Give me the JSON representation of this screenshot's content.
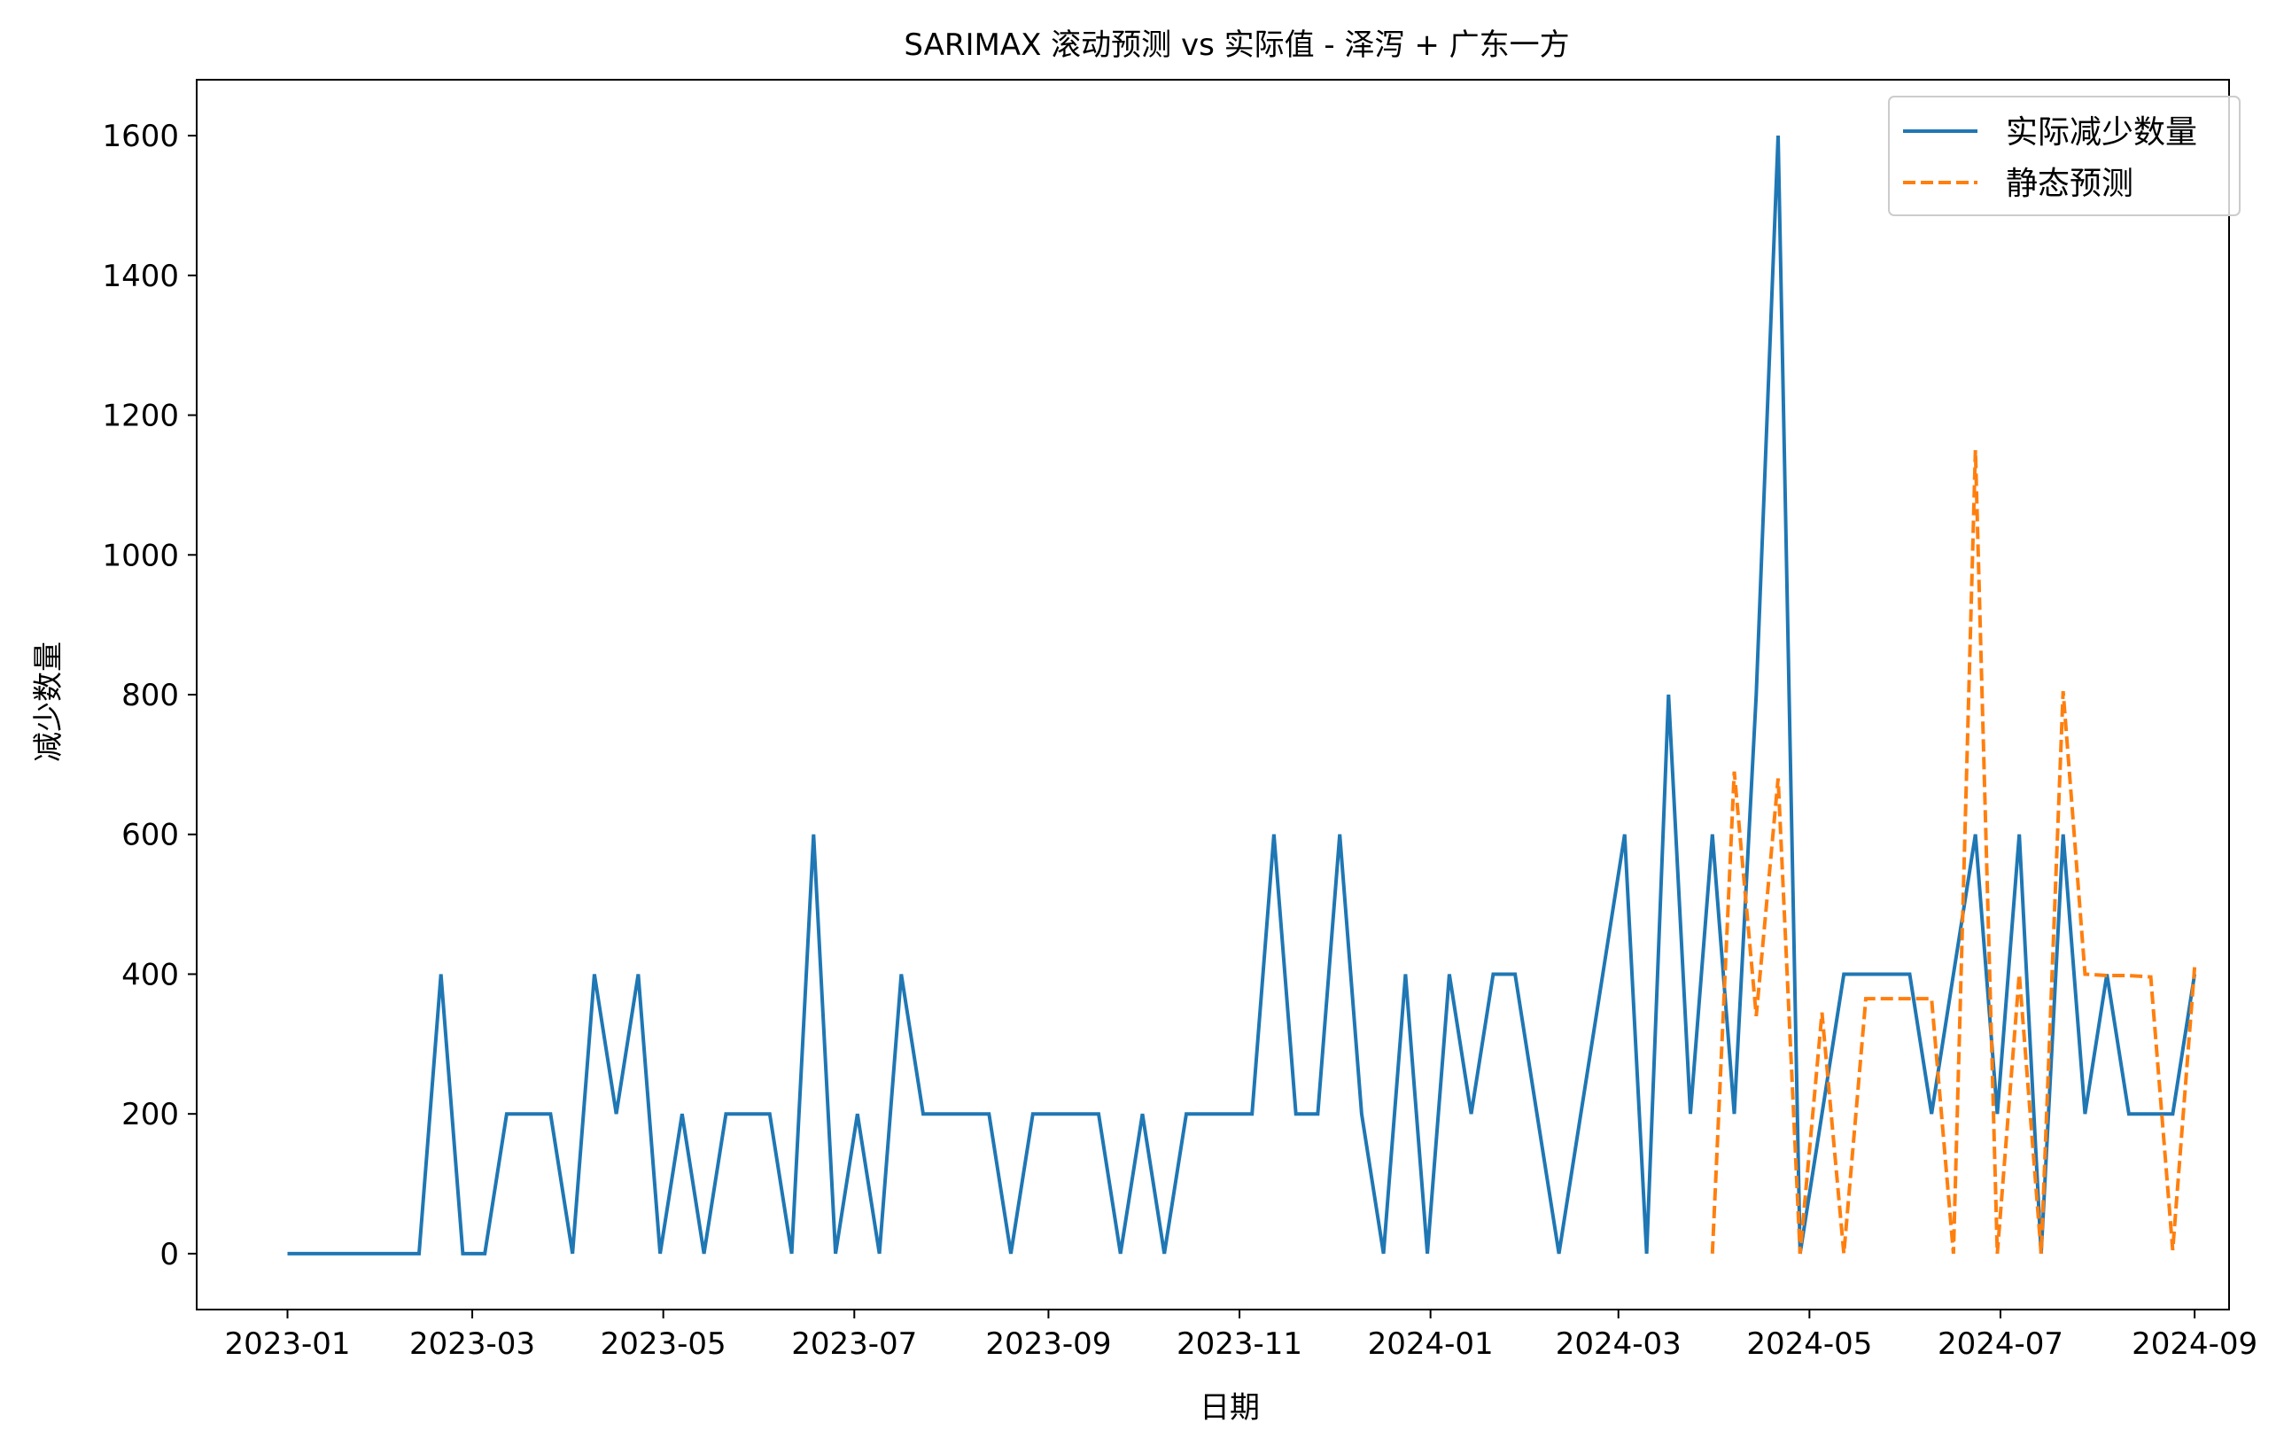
{
  "chart_data": {
    "type": "line",
    "title": "SARIMAX 滚动预测 vs 实际值 - 泽泻 + 广东一方",
    "xlabel": "日期",
    "ylabel": "减少数量",
    "x_ticks": [
      "2023-01",
      "2023-03",
      "2023-05",
      "2023-07",
      "2023-09",
      "2023-11",
      "2024-01",
      "2024-03",
      "2024-05",
      "2024-07",
      "2024-09"
    ],
    "y_ticks": [
      "0",
      "200",
      "400",
      "600",
      "800",
      "1000",
      "1200",
      "1400",
      "1600"
    ],
    "xlim": [
      "2022-12-03",
      "2024-09-12"
    ],
    "ylim": [
      -80,
      1680
    ],
    "grid": false,
    "legend_position": "top-right",
    "series": [
      {
        "name": "实际减少数量",
        "color": "#1f77b4",
        "style": "solid",
        "points": [
          [
            "2023-01-01",
            0
          ],
          [
            "2023-01-08",
            0
          ],
          [
            "2023-01-15",
            0
          ],
          [
            "2023-01-22",
            0
          ],
          [
            "2023-01-29",
            0
          ],
          [
            "2023-02-05",
            0
          ],
          [
            "2023-02-12",
            0
          ],
          [
            "2023-02-19",
            400
          ],
          [
            "2023-02-26",
            0
          ],
          [
            "2023-03-05",
            0
          ],
          [
            "2023-03-12",
            200
          ],
          [
            "2023-03-19",
            200
          ],
          [
            "2023-03-26",
            200
          ],
          [
            "2023-04-02",
            0
          ],
          [
            "2023-04-09",
            400
          ],
          [
            "2023-04-16",
            200
          ],
          [
            "2023-04-23",
            400
          ],
          [
            "2023-04-30",
            0
          ],
          [
            "2023-05-07",
            200
          ],
          [
            "2023-05-14",
            0
          ],
          [
            "2023-05-21",
            200
          ],
          [
            "2023-05-28",
            200
          ],
          [
            "2023-06-04",
            200
          ],
          [
            "2023-06-11",
            0
          ],
          [
            "2023-06-18",
            600
          ],
          [
            "2023-06-25",
            0
          ],
          [
            "2023-07-02",
            200
          ],
          [
            "2023-07-09",
            0
          ],
          [
            "2023-07-16",
            400
          ],
          [
            "2023-07-23",
            200
          ],
          [
            "2023-07-30",
            200
          ],
          [
            "2023-08-06",
            200
          ],
          [
            "2023-08-13",
            200
          ],
          [
            "2023-08-20",
            0
          ],
          [
            "2023-08-27",
            200
          ],
          [
            "2023-09-03",
            200
          ],
          [
            "2023-09-10",
            200
          ],
          [
            "2023-09-17",
            200
          ],
          [
            "2023-09-24",
            0
          ],
          [
            "2023-10-01",
            200
          ],
          [
            "2023-10-08",
            0
          ],
          [
            "2023-10-15",
            200
          ],
          [
            "2023-10-22",
            200
          ],
          [
            "2023-10-29",
            200
          ],
          [
            "2023-11-05",
            200
          ],
          [
            "2023-11-12",
            600
          ],
          [
            "2023-11-19",
            200
          ],
          [
            "2023-11-26",
            200
          ],
          [
            "2023-12-03",
            600
          ],
          [
            "2023-12-10",
            200
          ],
          [
            "2023-12-17",
            0
          ],
          [
            "2023-12-24",
            400
          ],
          [
            "2023-12-31",
            0
          ],
          [
            "2024-01-07",
            400
          ],
          [
            "2024-01-14",
            200
          ],
          [
            "2024-01-21",
            400
          ],
          [
            "2024-01-28",
            400
          ],
          [
            "2024-02-04",
            200
          ],
          [
            "2024-02-11",
            0
          ],
          [
            "2024-02-18",
            200
          ],
          [
            "2024-02-25",
            400
          ],
          [
            "2024-03-03",
            600
          ],
          [
            "2024-03-10",
            0
          ],
          [
            "2024-03-17",
            800
          ],
          [
            "2024-03-24",
            200
          ],
          [
            "2024-03-31",
            600
          ],
          [
            "2024-04-07",
            200
          ],
          [
            "2024-04-14",
            800
          ],
          [
            "2024-04-21",
            1600
          ],
          [
            "2024-04-28",
            0
          ],
          [
            "2024-05-05",
            200
          ],
          [
            "2024-05-12",
            400
          ],
          [
            "2024-05-19",
            400
          ],
          [
            "2024-05-26",
            400
          ],
          [
            "2024-06-02",
            400
          ],
          [
            "2024-06-09",
            200
          ],
          [
            "2024-06-16",
            400
          ],
          [
            "2024-06-23",
            600
          ],
          [
            "2024-06-30",
            200
          ],
          [
            "2024-07-07",
            600
          ],
          [
            "2024-07-14",
            0
          ],
          [
            "2024-07-21",
            600
          ],
          [
            "2024-07-28",
            200
          ],
          [
            "2024-08-04",
            400
          ],
          [
            "2024-08-11",
            200
          ],
          [
            "2024-08-18",
            200
          ],
          [
            "2024-08-25",
            200
          ],
          [
            "2024-09-01",
            400
          ]
        ]
      },
      {
        "name": "静态预测",
        "color": "#ff7f0e",
        "style": "dashed",
        "points": [
          [
            "2024-03-31",
            0
          ],
          [
            "2024-04-07",
            690
          ],
          [
            "2024-04-14",
            340
          ],
          [
            "2024-04-21",
            680
          ],
          [
            "2024-04-28",
            0
          ],
          [
            "2024-05-05",
            345
          ],
          [
            "2024-05-12",
            0
          ],
          [
            "2024-05-19",
            365
          ],
          [
            "2024-05-26",
            365
          ],
          [
            "2024-06-02",
            365
          ],
          [
            "2024-06-09",
            365
          ],
          [
            "2024-06-16",
            0
          ],
          [
            "2024-06-23",
            1150
          ],
          [
            "2024-06-30",
            0
          ],
          [
            "2024-07-07",
            400
          ],
          [
            "2024-07-14",
            0
          ],
          [
            "2024-07-21",
            805
          ],
          [
            "2024-07-28",
            400
          ],
          [
            "2024-08-04",
            398
          ],
          [
            "2024-08-11",
            398
          ],
          [
            "2024-08-18",
            396
          ],
          [
            "2024-08-25",
            5
          ],
          [
            "2024-09-01",
            410
          ]
        ]
      }
    ]
  }
}
